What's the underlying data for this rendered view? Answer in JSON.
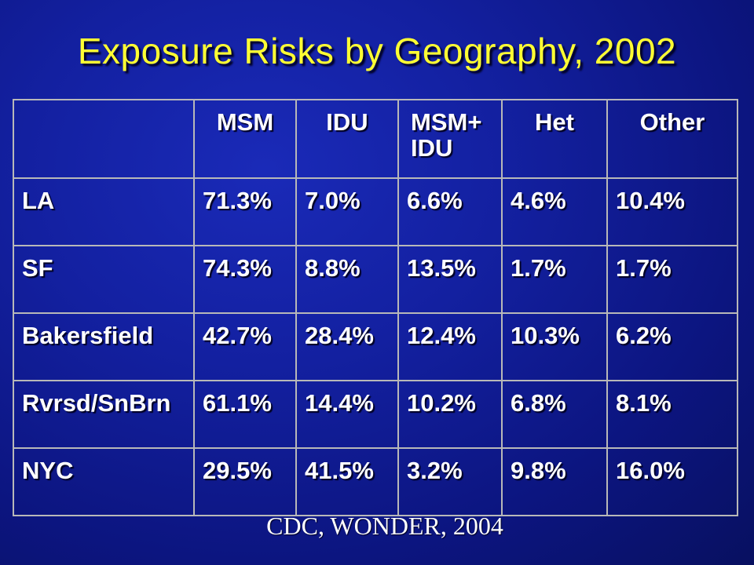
{
  "slide": {
    "title": "Exposure Risks by Geography, 2002",
    "source": "CDC, WONDER, 2004"
  },
  "table": {
    "columns": [
      "MSM",
      "IDU",
      "MSM+ IDU",
      "Het",
      "Other"
    ],
    "rows": [
      {
        "label": "LA",
        "values": [
          "71.3%",
          "7.0%",
          "6.6%",
          "4.6%",
          "10.4%"
        ]
      },
      {
        "label": "SF",
        "values": [
          "74.3%",
          "8.8%",
          "13.5%",
          "1.7%",
          "1.7%"
        ]
      },
      {
        "label": "Bakersfield",
        "values": [
          "42.7%",
          "28.4%",
          "12.4%",
          "10.3%",
          "6.2%"
        ]
      },
      {
        "label": "Rvrsd/SnBrn",
        "values": [
          "61.1%",
          "14.4%",
          "10.2%",
          "6.8%",
          "8.1%"
        ]
      },
      {
        "label": "NYC",
        "values": [
          "29.5%",
          "41.5%",
          "3.2%",
          "9.8%",
          "16.0%"
        ]
      }
    ]
  },
  "colors": {
    "title": "#ffff33",
    "background": "#1320a0",
    "text": "#ffffff",
    "grid": "#b8b8b8"
  }
}
